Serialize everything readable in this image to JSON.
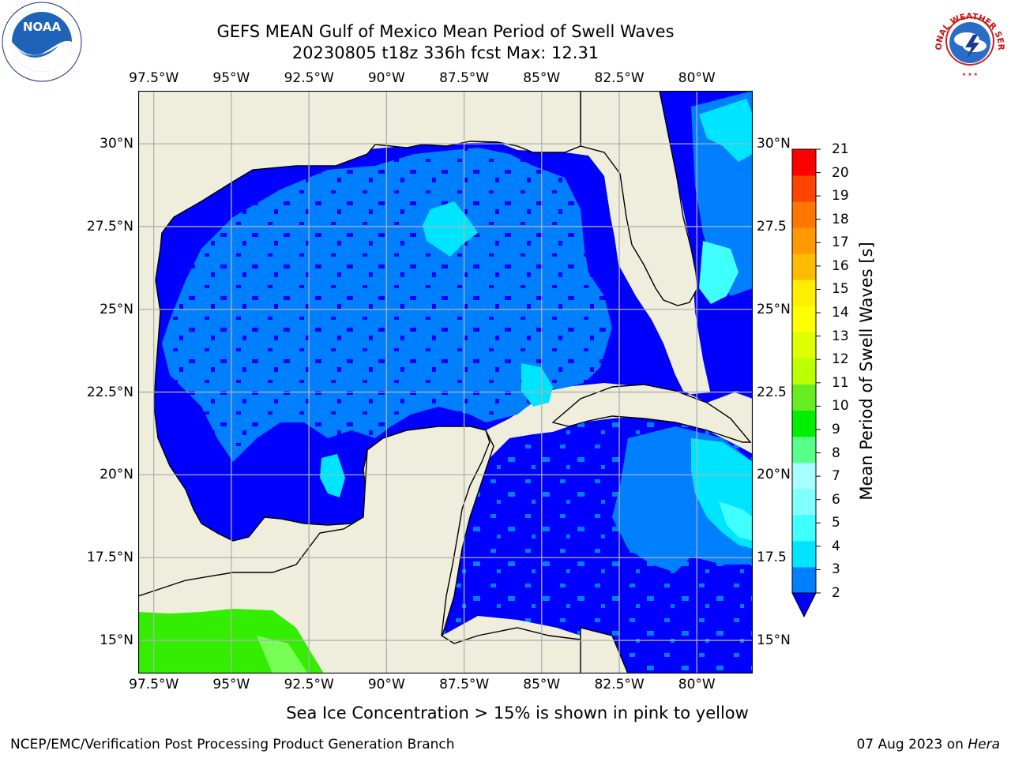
{
  "title_line1": "GEFS MEAN Gulf of Mexico Mean Period of Swell Waves",
  "title_line2": "20230805 t18z 336h fcst   Max: 12.31",
  "map": {
    "lon_labels": [
      "97.5°W",
      "95°W",
      "92.5°W",
      "90°W",
      "87.5°W",
      "85°W",
      "82.5°W",
      "80°W"
    ],
    "lon_values": [
      -97.5,
      -95,
      -92.5,
      -90,
      -87.5,
      -85,
      -82.5,
      -80
    ],
    "lat_labels_left": [
      "30°N",
      "27.5°N",
      "25°N",
      "22.5°N",
      "20°N",
      "17.5°N",
      "15°N"
    ],
    "lat_labels_right": [
      "30°N",
      "27.5",
      "25°N",
      "22.5",
      "20°N",
      "17.5",
      "15°N"
    ],
    "lat_values": [
      30,
      27.5,
      25,
      22.5,
      20,
      17.5,
      15
    ],
    "extent": {
      "lon_min": -98,
      "lon_max": -78.2,
      "lat_min": 14.0,
      "lat_max": 31.6
    },
    "grid": true,
    "land_color": "#efeddb",
    "gridline_color": "#b0b0b0",
    "region_colors": {
      "2-4": "#0000ff",
      "4-6": "#0080ff",
      "6-8": "#00ffff",
      "8-10": "#40ffff",
      "10-11": "#00ff00",
      "11-12": "#66ff33"
    }
  },
  "colorbar": {
    "label": "Mean Period of Swell Waves [s]",
    "ticks": [
      "21",
      "20",
      "19",
      "18",
      "17",
      "16",
      "15",
      "14",
      "13",
      "12",
      "11",
      "10",
      "9",
      "8",
      "7",
      "6",
      "5",
      "4",
      "3",
      "2"
    ],
    "levels": [
      2,
      4,
      6,
      8,
      9,
      10,
      11,
      12,
      13,
      14,
      15,
      16,
      17,
      18,
      19,
      20,
      21
    ],
    "colors": [
      "#0080ff",
      "#00e5ff",
      "#40ffff",
      "#80ffff",
      "#a8ffff",
      "#55ff88",
      "#00ee00",
      "#66ee22",
      "#bbff00",
      "#ddff00",
      "#ffff00",
      "#ffee00",
      "#ffbb00",
      "#ff9900",
      "#ff7700",
      "#ff4400",
      "#ff0000"
    ],
    "extend_color": "#0000ff"
  },
  "subtitle": "Sea Ice Concentration > 15% is shown in pink to yellow",
  "footer_left": "NCEP/EMC/Verification Post Processing Product Generation Branch",
  "footer_right_date": "07 Aug 2023 on ",
  "footer_right_host": "Hera",
  "logos": {
    "left": "noaa-logo",
    "right": "national-weather-service-logo"
  },
  "noaa_logo_text": "NOAA",
  "nws_logo_text": "NATIONAL WEATHER SERVICE"
}
